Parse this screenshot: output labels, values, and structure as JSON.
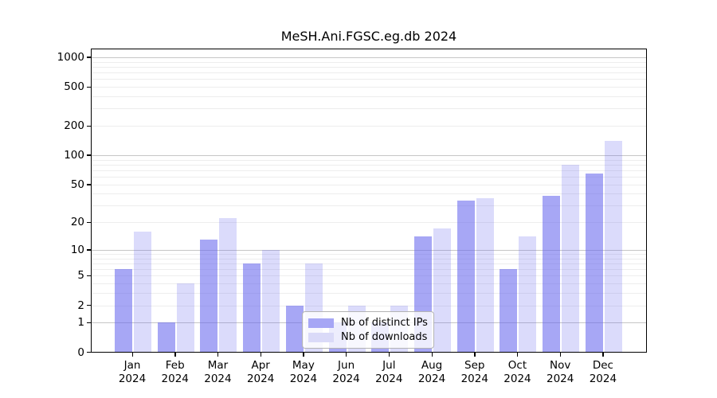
{
  "title": "MeSH.Ani.FGSC.eg.db 2024",
  "chart_data": {
    "type": "bar",
    "title": "MeSH.Ani.FGSC.eg.db 2024",
    "categories": [
      "Jan 2024",
      "Feb 2024",
      "Mar 2024",
      "Apr 2024",
      "May 2024",
      "Jun 2024",
      "Jul 2024",
      "Aug 2024",
      "Sep 2024",
      "Oct 2024",
      "Nov 2024",
      "Dec 2024"
    ],
    "series": [
      {
        "name": "Nb of distinct IPs",
        "color": "#a6a6f5",
        "fill": "rgba(103,103,238,0.58)",
        "values": [
          6,
          1,
          13,
          7,
          2,
          1,
          1,
          14,
          34,
          6,
          38,
          65
        ]
      },
      {
        "name": "Nb of downloads",
        "color": "#dadaf8",
        "fill": "rgba(103,103,238,0.24)",
        "values": [
          16,
          4,
          22,
          10,
          7,
          2,
          2,
          17,
          36,
          14,
          80,
          140
        ]
      }
    ],
    "yscale": "log10(1+v)",
    "y_ticks": [
      0,
      1,
      2,
      5,
      10,
      20,
      50,
      100,
      200,
      500,
      1000
    ],
    "ylim": [
      0,
      1350
    ],
    "grid": true,
    "legend_position": "bottom-center-inside"
  },
  "legend": {
    "items": [
      {
        "label": "Nb of distinct IPs"
      },
      {
        "label": "Nb of downloads"
      }
    ]
  }
}
